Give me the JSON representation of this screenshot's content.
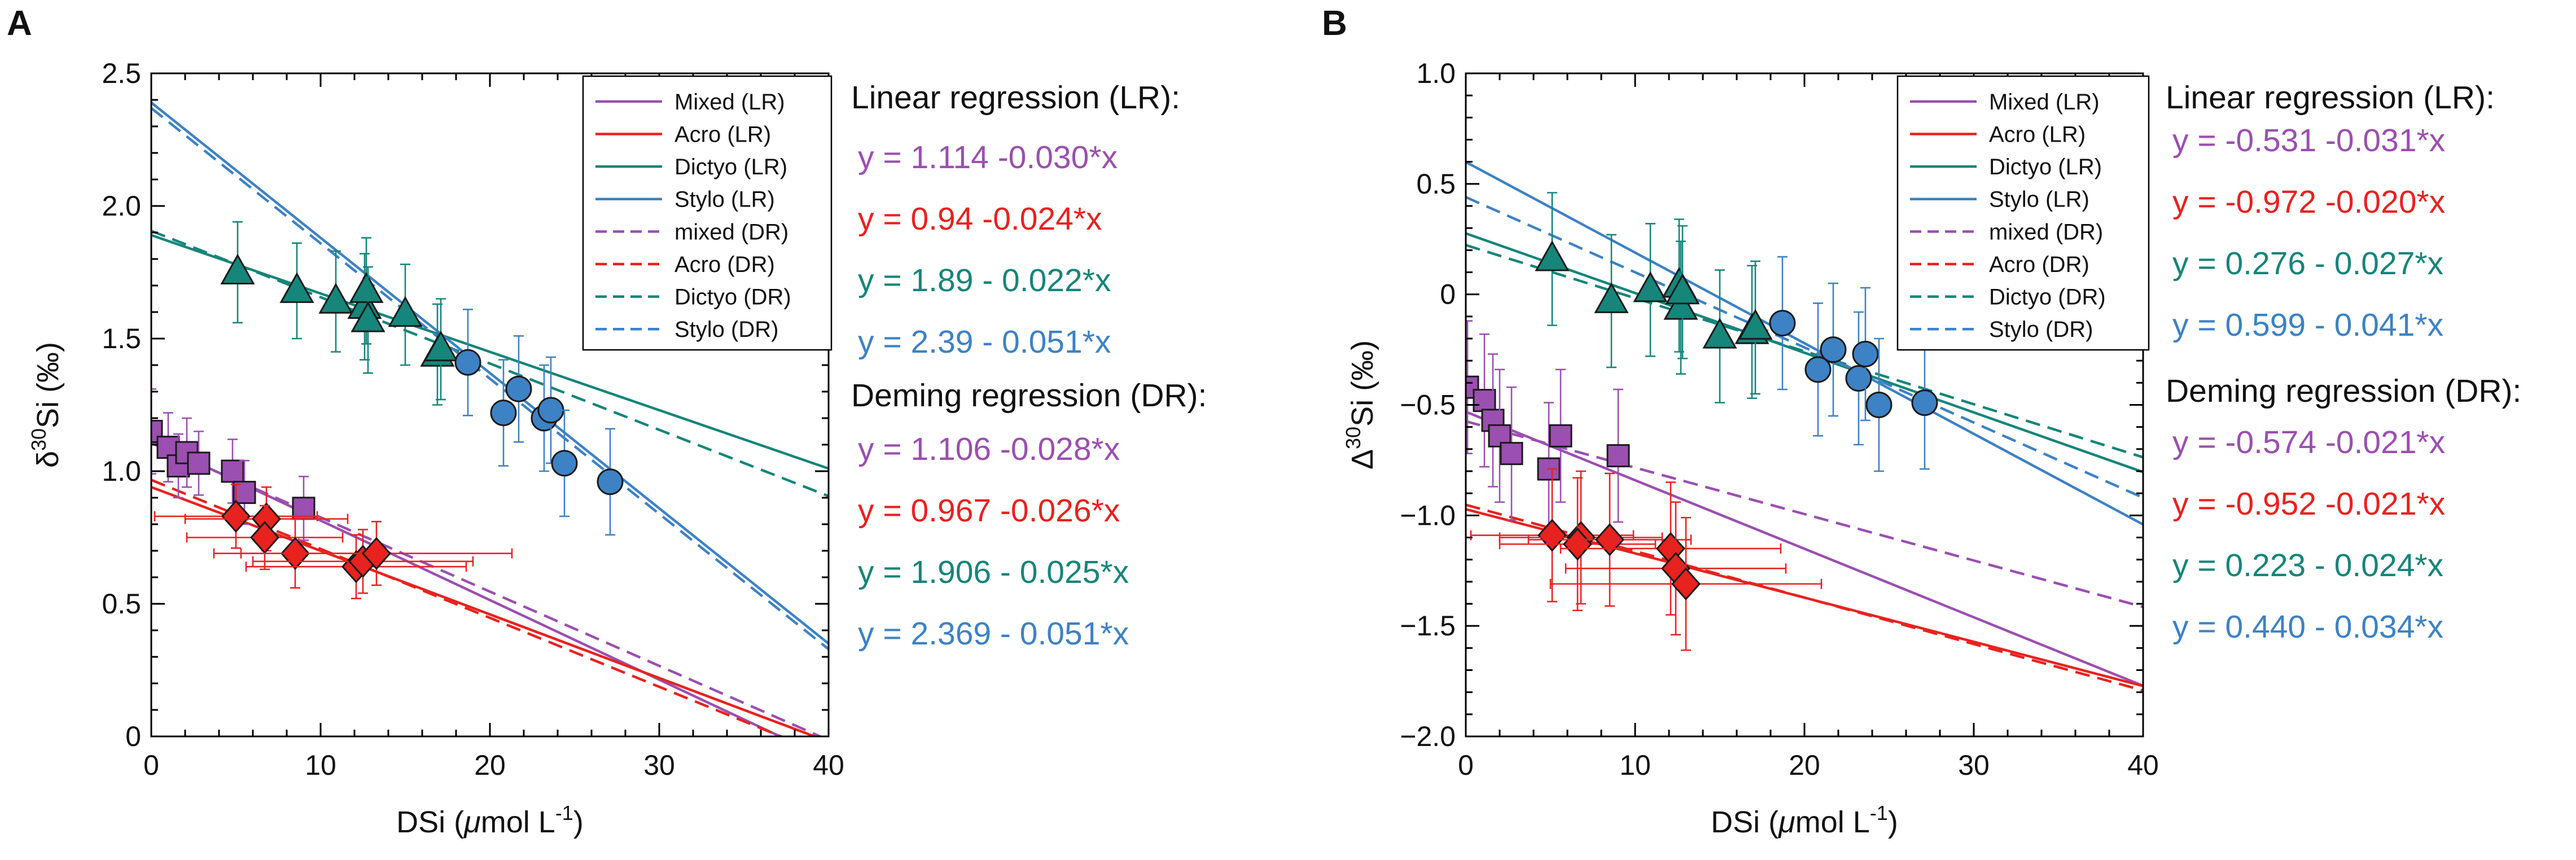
{
  "chart_data": [
    {
      "panel_label": "A",
      "type": "scatter",
      "xlabel": "DSi (μmol L⁻¹)",
      "xlabel_parts": [
        "DSi (",
        "μ",
        "mol L",
        "-1",
        ")"
      ],
      "ylabel_parts": [
        "δ",
        "30",
        "Si (‰)"
      ],
      "xlim": [
        0,
        40
      ],
      "ylim": [
        0,
        2.5
      ],
      "xticks": [
        0,
        10,
        20,
        30,
        40
      ],
      "xtick_labels": [
        "0",
        "10",
        "20",
        "30",
        "40"
      ],
      "yticks": [
        0,
        0.5,
        1.0,
        1.5,
        2.0,
        2.5
      ],
      "ytick_labels": [
        "0",
        "0.5",
        "1.0",
        "1.5",
        "2.0",
        "2.5"
      ],
      "legend_position": "top-right",
      "legend": [
        "Mixed (LR)",
        "Acro (LR)",
        "Dictyo (LR)",
        "Stylo (LR)",
        "mixed (DR)",
        "Acro (DR)",
        "Dictyo (DR)",
        "Stylo (DR)"
      ],
      "lines": [
        {
          "name": "Mixed (LR)",
          "intercept": 1.114,
          "slope": -0.03,
          "style": "solid",
          "color": "#9b4fb0"
        },
        {
          "name": "Acro (LR)",
          "intercept": 0.94,
          "slope": -0.024,
          "style": "solid",
          "color": "#e8221f"
        },
        {
          "name": "Dictyo (LR)",
          "intercept": 1.89,
          "slope": -0.022,
          "style": "solid",
          "color": "#16857a"
        },
        {
          "name": "Stylo (LR)",
          "intercept": 2.39,
          "slope": -0.051,
          "style": "solid",
          "color": "#3d82c4"
        },
        {
          "name": "mixed (DR)",
          "intercept": 1.106,
          "slope": -0.028,
          "style": "dashed",
          "color": "#9b4fb0"
        },
        {
          "name": "Acro (DR)",
          "intercept": 0.967,
          "slope": -0.026,
          "style": "dashed",
          "color": "#e8221f"
        },
        {
          "name": "Dictyo (DR)",
          "intercept": 1.906,
          "slope": -0.025,
          "style": "dashed",
          "color": "#16857a"
        },
        {
          "name": "Stylo (DR)",
          "intercept": 2.369,
          "slope": -0.051,
          "style": "dashed",
          "color": "#3d82c4"
        }
      ],
      "series": [
        {
          "name": "Mixed",
          "marker": "square",
          "color": "#9b4fb0",
          "points": [
            {
              "x": 0,
              "y": 1.15,
              "yerr": 0.16,
              "xerr": 0.3
            },
            {
              "x": 1.0,
              "y": 1.09,
              "yerr": 0.13,
              "xerr": 0.3
            },
            {
              "x": 1.6,
              "y": 1.02,
              "yerr": 0.12,
              "xerr": 0.3
            },
            {
              "x": 2.1,
              "y": 1.07,
              "yerr": 0.13,
              "xerr": 0.3
            },
            {
              "x": 2.8,
              "y": 1.03,
              "yerr": 0.12,
              "xerr": 0.3
            },
            {
              "x": 4.8,
              "y": 1.0,
              "yerr": 0.12,
              "xerr": 0.3
            },
            {
              "x": 5.5,
              "y": 0.92,
              "yerr": 0.12,
              "xerr": 0.3
            },
            {
              "x": 9.0,
              "y": 0.86,
              "yerr": 0.12,
              "xerr": 0.3
            }
          ]
        },
        {
          "name": "Acro",
          "marker": "diamond",
          "color": "#e8221f",
          "points": [
            {
              "x": 5.0,
              "y": 0.83,
              "yerr": 0.12,
              "xerr": 4.8
            },
            {
              "x": 6.8,
              "y": 0.82,
              "yerr": 0.12,
              "xerr": 4.8
            },
            {
              "x": 6.7,
              "y": 0.75,
              "yerr": 0.12,
              "xerr": 4.6
            },
            {
              "x": 8.5,
              "y": 0.69,
              "yerr": 0.13,
              "xerr": 4.8
            },
            {
              "x": 12.1,
              "y": 0.64,
              "yerr": 0.12,
              "xerr": 6.5
            },
            {
              "x": 12.5,
              "y": 0.66,
              "yerr": 0.12,
              "xerr": 6.5
            },
            {
              "x": 13.3,
              "y": 0.69,
              "yerr": 0.12,
              "xerr": 8.0
            }
          ]
        },
        {
          "name": "Dictyo",
          "marker": "triangle",
          "color": "#16857a",
          "points": [
            {
              "x": 5.1,
              "y": 1.75,
              "yerr": 0.19,
              "xerr": 0.3
            },
            {
              "x": 8.6,
              "y": 1.68,
              "yerr": 0.18,
              "xerr": 0.3
            },
            {
              "x": 10.9,
              "y": 1.64,
              "yerr": 0.19,
              "xerr": 0.3
            },
            {
              "x": 12.6,
              "y": 1.62,
              "yerr": 0.2,
              "xerr": 0.3
            },
            {
              "x": 12.7,
              "y": 1.68,
              "yerr": 0.2,
              "xerr": 0.3
            },
            {
              "x": 12.8,
              "y": 1.57,
              "yerr": 0.2,
              "xerr": 0.3
            },
            {
              "x": 15.0,
              "y": 1.59,
              "yerr": 0.19,
              "xerr": 0.3
            },
            {
              "x": 16.9,
              "y": 1.44,
              "yerr": 0.19,
              "xerr": 0.3
            },
            {
              "x": 17.1,
              "y": 1.46,
              "yerr": 0.19,
              "xerr": 0.3
            }
          ]
        },
        {
          "name": "Stylo",
          "marker": "circle",
          "color": "#3d82c4",
          "points": [
            {
              "x": 18.7,
              "y": 1.41,
              "yerr": 0.2,
              "xerr": 0.3
            },
            {
              "x": 20.8,
              "y": 1.22,
              "yerr": 0.2,
              "xerr": 0.3
            },
            {
              "x": 21.7,
              "y": 1.31,
              "yerr": 0.2,
              "xerr": 0.3
            },
            {
              "x": 23.2,
              "y": 1.2,
              "yerr": 0.2,
              "xerr": 0.3
            },
            {
              "x": 23.6,
              "y": 1.23,
              "yerr": 0.2,
              "xerr": 0.3
            },
            {
              "x": 24.4,
              "y": 1.03,
              "yerr": 0.2,
              "xerr": 0.3
            },
            {
              "x": 27.1,
              "y": 0.96,
              "yerr": 0.2,
              "xerr": 0.3
            }
          ]
        }
      ],
      "annotations": {
        "lr_title": "Linear regression (LR):",
        "lr_equations": [
          {
            "text": "y = 1.114 -0.030*x",
            "color": "#9b4fb0"
          },
          {
            "text": "y = 0.94 -0.024*x",
            "color": "#e8221f"
          },
          {
            "text": "y = 1.89 - 0.022*x",
            "color": "#16857a"
          },
          {
            "text": "y = 2.39 - 0.051*x",
            "color": "#3d82c4"
          }
        ],
        "dr_title": "Deming regression (DR):",
        "dr_equations": [
          {
            "text": "y = 1.106 -0.028*x",
            "color": "#9b4fb0"
          },
          {
            "text": "y = 0.967 -0.026*x",
            "color": "#e8221f"
          },
          {
            "text": "y = 1.906 - 0.025*x",
            "color": "#16857a"
          },
          {
            "text": "y = 2.369 - 0.051*x",
            "color": "#3d82c4"
          }
        ]
      }
    },
    {
      "panel_label": "B",
      "type": "scatter",
      "xlabel": "DSi (μmol L⁻¹)",
      "xlabel_parts": [
        "DSi (",
        "μ",
        "mol L",
        "-1",
        ")"
      ],
      "ylabel_parts": [
        "Δ",
        "30",
        "Si (‰)"
      ],
      "xlim": [
        0,
        40
      ],
      "ylim": [
        -2.0,
        1.0
      ],
      "xticks": [
        0,
        10,
        20,
        30,
        40
      ],
      "xtick_labels": [
        "0",
        "10",
        "20",
        "30",
        "40"
      ],
      "yticks": [
        -2.0,
        -1.5,
        -1.0,
        -0.5,
        0,
        0.5,
        1.0
      ],
      "ytick_labels": [
        "−2.0",
        "−1.5",
        "−1.0",
        "−0.5",
        "0",
        "0.5",
        "1.0"
      ],
      "legend_position": "top-right",
      "legend": [
        "Mixed (LR)",
        "Acro (LR)",
        "Dictyo (LR)",
        "Stylo (LR)",
        "mixed (DR)",
        "Acro (DR)",
        "Dictyo (DR)",
        "Stylo (DR)"
      ],
      "lines": [
        {
          "name": "Mixed (LR)",
          "intercept": -0.531,
          "slope": -0.031,
          "style": "solid",
          "color": "#9b4fb0"
        },
        {
          "name": "Acro (LR)",
          "intercept": -0.972,
          "slope": -0.02,
          "style": "solid",
          "color": "#e8221f"
        },
        {
          "name": "Dictyo (LR)",
          "intercept": 0.276,
          "slope": -0.027,
          "style": "solid",
          "color": "#16857a"
        },
        {
          "name": "Stylo (LR)",
          "intercept": 0.599,
          "slope": -0.041,
          "style": "solid",
          "color": "#3d82c4"
        },
        {
          "name": "mixed (DR)",
          "intercept": -0.574,
          "slope": -0.021,
          "style": "dashed",
          "color": "#9b4fb0"
        },
        {
          "name": "Acro (DR)",
          "intercept": -0.952,
          "slope": -0.021,
          "style": "dashed",
          "color": "#e8221f"
        },
        {
          "name": "Dictyo (DR)",
          "intercept": 0.223,
          "slope": -0.024,
          "style": "dashed",
          "color": "#16857a"
        },
        {
          "name": "Stylo (DR)",
          "intercept": 0.44,
          "slope": -0.034,
          "style": "dashed",
          "color": "#3d82c4"
        }
      ],
      "series": [
        {
          "name": "Mixed",
          "marker": "square",
          "color": "#9b4fb0",
          "points": [
            {
              "x": 0.1,
              "y": -0.42,
              "yerr": 0.3,
              "xerr": 0.3
            },
            {
              "x": 1.1,
              "y": -0.48,
              "yerr": 0.3,
              "xerr": 0.3
            },
            {
              "x": 1.6,
              "y": -0.57,
              "yerr": 0.3,
              "xerr": 0.3
            },
            {
              "x": 2.0,
              "y": -0.64,
              "yerr": 0.3,
              "xerr": 0.3
            },
            {
              "x": 2.7,
              "y": -0.72,
              "yerr": 0.3,
              "xerr": 0.3
            },
            {
              "x": 4.9,
              "y": -0.79,
              "yerr": 0.3,
              "xerr": 0.3
            },
            {
              "x": 5.6,
              "y": -0.64,
              "yerr": 0.3,
              "xerr": 0.3
            },
            {
              "x": 9.0,
              "y": -0.73,
              "yerr": 0.3,
              "xerr": 0.3
            }
          ]
        },
        {
          "name": "Acro",
          "marker": "diamond",
          "color": "#e8221f",
          "points": [
            {
              "x": 5.1,
              "y": -1.09,
              "yerr": 0.3,
              "xerr": 4.8
            },
            {
              "x": 6.8,
              "y": -1.1,
              "yerr": 0.3,
              "xerr": 4.8
            },
            {
              "x": 6.6,
              "y": -1.13,
              "yerr": 0.3,
              "xerr": 4.6
            },
            {
              "x": 8.5,
              "y": -1.11,
              "yerr": 0.3,
              "xerr": 4.8
            },
            {
              "x": 12.1,
              "y": -1.15,
              "yerr": 0.3,
              "xerr": 6.5
            },
            {
              "x": 12.4,
              "y": -1.24,
              "yerr": 0.3,
              "xerr": 6.5
            },
            {
              "x": 13.0,
              "y": -1.31,
              "yerr": 0.3,
              "xerr": 8.0
            }
          ]
        },
        {
          "name": "Dictyo",
          "marker": "triangle",
          "color": "#16857a",
          "points": [
            {
              "x": 5.1,
              "y": 0.16,
              "yerr": 0.3,
              "xerr": 0.3
            },
            {
              "x": 8.6,
              "y": -0.03,
              "yerr": 0.3,
              "xerr": 0.3
            },
            {
              "x": 10.9,
              "y": 0.02,
              "yerr": 0.3,
              "xerr": 0.3
            },
            {
              "x": 12.6,
              "y": 0.04,
              "yerr": 0.3,
              "xerr": 0.3
            },
            {
              "x": 12.7,
              "y": -0.06,
              "yerr": 0.3,
              "xerr": 0.3
            },
            {
              "x": 12.8,
              "y": 0.01,
              "yerr": 0.3,
              "xerr": 0.3
            },
            {
              "x": 15.0,
              "y": -0.19,
              "yerr": 0.3,
              "xerr": 0.3
            },
            {
              "x": 16.9,
              "y": -0.17,
              "yerr": 0.3,
              "xerr": 0.3
            },
            {
              "x": 17.1,
              "y": -0.15,
              "yerr": 0.3,
              "xerr": 0.3
            }
          ]
        },
        {
          "name": "Stylo",
          "marker": "circle",
          "color": "#3d82c4",
          "points": [
            {
              "x": 18.7,
              "y": -0.13,
              "yerr": 0.3,
              "xerr": 0.3
            },
            {
              "x": 20.8,
              "y": -0.34,
              "yerr": 0.3,
              "xerr": 0.3
            },
            {
              "x": 21.7,
              "y": -0.25,
              "yerr": 0.3,
              "xerr": 0.3
            },
            {
              "x": 23.2,
              "y": -0.38,
              "yerr": 0.3,
              "xerr": 0.3
            },
            {
              "x": 23.6,
              "y": -0.27,
              "yerr": 0.3,
              "xerr": 0.3
            },
            {
              "x": 24.4,
              "y": -0.5,
              "yerr": 0.3,
              "xerr": 0.3
            },
            {
              "x": 27.1,
              "y": -0.49,
              "yerr": 0.3,
              "xerr": 0.3
            }
          ]
        }
      ],
      "annotations": {
        "lr_title": "Linear regression (LR):",
        "lr_equations": [
          {
            "text": "y = -0.531 -0.031*x",
            "color": "#9b4fb0"
          },
          {
            "text": "y = -0.972 -0.020*x",
            "color": "#e8221f"
          },
          {
            "text": "y = 0.276 - 0.027*x",
            "color": "#16857a"
          },
          {
            "text": "y = 0.599 - 0.041*x",
            "color": "#3d82c4"
          }
        ],
        "dr_title": "Deming regression (DR):",
        "dr_equations": [
          {
            "text": "y = -0.574 -0.021*x",
            "color": "#9b4fb0"
          },
          {
            "text": "y = -0.952 -0.021*x",
            "color": "#e8221f"
          },
          {
            "text": "y = 0.223 - 0.024*x",
            "color": "#16857a"
          },
          {
            "text": "y = 0.440 - 0.034*x",
            "color": "#3d82c4"
          }
        ]
      }
    }
  ]
}
